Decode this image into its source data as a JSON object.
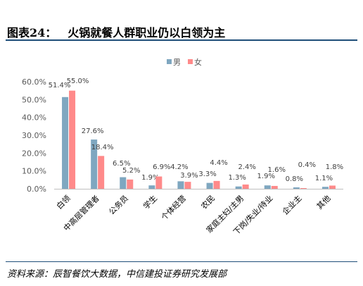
{
  "header": {
    "figure_num": "图表24：",
    "title": "火锅就餐人群职业仍以白领为主"
  },
  "source": "资料来源：辰智餐饮大数据，中信建投证券研究发展部",
  "colors": {
    "male": "#7fa7c0",
    "female": "#ff8a8a"
  },
  "chart_data": {
    "type": "bar",
    "title": "",
    "xlabel": "",
    "ylabel": "",
    "ylim": [
      0,
      60
    ],
    "y_ticks": [
      "0.0%",
      "10.0%",
      "20.0%",
      "30.0%",
      "40.0%",
      "50.0%",
      "60.0%"
    ],
    "grid": false,
    "legend_position": "top-center",
    "categories": [
      "白领",
      "中高层管理者",
      "公务员",
      "学生",
      "个体经营",
      "农民",
      "家庭主妇/主男",
      "下岗/失业/待业",
      "企业主",
      "其他"
    ],
    "series": [
      {
        "name": "男",
        "values": [
          51.4,
          27.6,
          6.5,
          1.9,
          4.2,
          3.3,
          1.3,
          1.9,
          0.8,
          1.1
        ],
        "labels": [
          "51.4%",
          "27.6%",
          "6.5%",
          "1.9%",
          "4.2%",
          "3.3%",
          "1.3%",
          "1.9%",
          "0.8%",
          "1.1%"
        ]
      },
      {
        "name": "女",
        "values": [
          55.0,
          18.4,
          5.2,
          6.9,
          3.9,
          4.4,
          2.4,
          1.6,
          0.4,
          1.8
        ],
        "labels": [
          "55.0%",
          "18.4%",
          "5.2%",
          "6.9%",
          "3.9%",
          "4.4%",
          "2.4%",
          "1.6%",
          "0.4%",
          "1.8%"
        ]
      }
    ]
  }
}
